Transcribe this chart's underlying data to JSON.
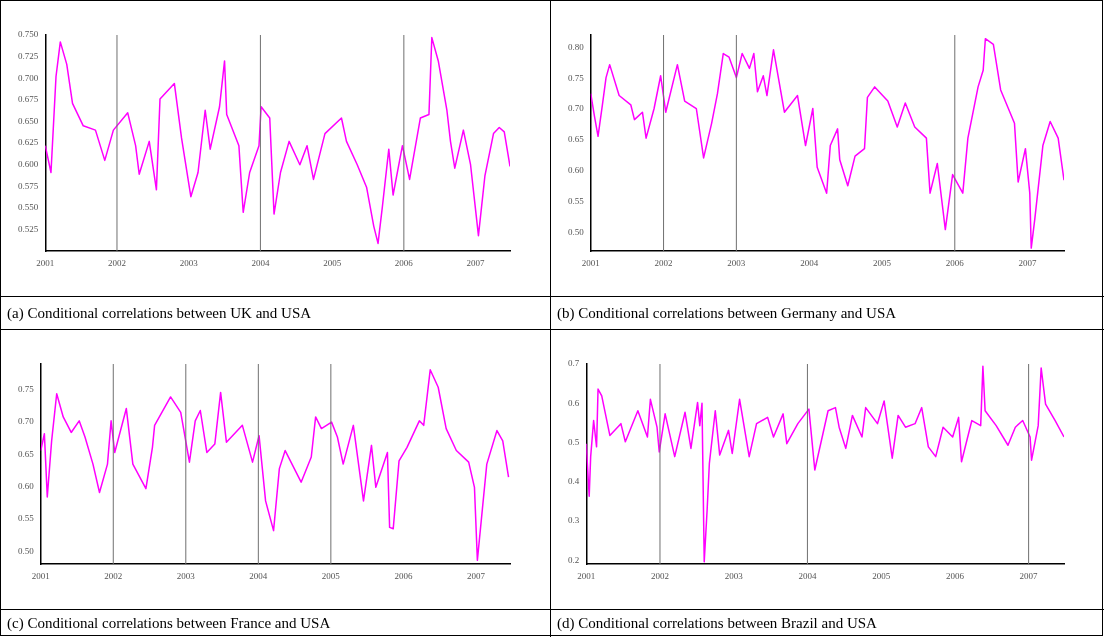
{
  "chart_data": [
    {
      "type": "line",
      "title": "(a) Conditional correlations between UK and USA",
      "marker": "none",
      "line_style": "solid",
      "xlim": [
        2001,
        2007.48
      ],
      "xticks": [
        2001,
        2002,
        2003,
        2004,
        2005,
        2006,
        2007
      ],
      "ylim": [
        0.5,
        0.75
      ],
      "yticks": [
        {
          "value": 0.525,
          "label": "0.525"
        },
        {
          "value": 0.55,
          "label": "0.550"
        },
        {
          "value": 0.575,
          "label": "0.575"
        },
        {
          "value": 0.6,
          "label": "0.600"
        },
        {
          "value": 0.625,
          "label": "0.625"
        },
        {
          "value": 0.65,
          "label": "0.650"
        },
        {
          "value": 0.675,
          "label": "0.675"
        },
        {
          "value": 0.7,
          "label": "0.700"
        },
        {
          "value": 0.725,
          "label": "0.725"
        },
        {
          "value": 0.75,
          "label": "0.750"
        }
      ],
      "ref_lines": [
        {
          "axis": "x",
          "value": 2002,
          "color": "#707070"
        },
        {
          "axis": "x",
          "value": 2004,
          "color": "#707070"
        },
        {
          "axis": "x",
          "value": 2006,
          "color": "#707070"
        }
      ],
      "x": [
        2001.0,
        2001.08,
        2001.15,
        2001.21,
        2001.3,
        2001.38,
        2001.53,
        2001.7,
        2001.83,
        2001.95,
        2002.15,
        2002.26,
        2002.31,
        2002.45,
        2002.55,
        2002.6,
        2002.8,
        2002.9,
        2003.03,
        2003.13,
        2003.23,
        2003.3,
        2003.43,
        2003.5,
        2003.53,
        2003.7,
        2003.76,
        2003.85,
        2003.98,
        2004.01,
        2004.13,
        2004.19,
        2004.28,
        2004.4,
        2004.55,
        2004.65,
        2004.74,
        2004.9,
        2005.13,
        2005.2,
        2005.35,
        2005.48,
        2005.58,
        2005.64,
        2005.7,
        2005.79,
        2005.85,
        2005.98,
        2006.08,
        2006.23,
        2006.35,
        2006.39,
        2006.48,
        2006.6,
        2006.65,
        2006.71,
        2006.83,
        2006.93,
        2007.04,
        2007.13,
        2007.25,
        2007.33,
        2007.4,
        2007.48
      ],
      "series": [
        {
          "color": "#ff00ff",
          "values": [
            0.622,
            0.591,
            0.702,
            0.742,
            0.716,
            0.671,
            0.645,
            0.64,
            0.605,
            0.64,
            0.66,
            0.622,
            0.589,
            0.627,
            0.571,
            0.676,
            0.694,
            0.631,
            0.563,
            0.591,
            0.663,
            0.618,
            0.667,
            0.72,
            0.658,
            0.622,
            0.545,
            0.591,
            0.622,
            0.667,
            0.654,
            0.543,
            0.591,
            0.627,
            0.6,
            0.622,
            0.583,
            0.636,
            0.654,
            0.627,
            0.6,
            0.574,
            0.529,
            0.509,
            0.551,
            0.618,
            0.565,
            0.622,
            0.583,
            0.654,
            0.658,
            0.747,
            0.72,
            0.663,
            0.627,
            0.596,
            0.64,
            0.6,
            0.518,
            0.587,
            0.636,
            0.643,
            0.638,
            0.598
          ]
        }
      ]
    },
    {
      "type": "line",
      "title": "(b)  Conditional correlations between Germany and USA",
      "marker": "none",
      "line_style": "solid",
      "xlim": [
        2001,
        2007.5
      ],
      "xticks": [
        2001,
        2002,
        2003,
        2004,
        2005,
        2006,
        2007
      ],
      "ylim": [
        0.47,
        0.82
      ],
      "yticks": [
        {
          "value": 0.5,
          "label": "0.50"
        },
        {
          "value": 0.55,
          "label": "0.55"
        },
        {
          "value": 0.6,
          "label": "0.60"
        },
        {
          "value": 0.65,
          "label": "0.65"
        },
        {
          "value": 0.7,
          "label": "0.70"
        },
        {
          "value": 0.75,
          "label": "0.75"
        },
        {
          "value": 0.8,
          "label": "0.80"
        }
      ],
      "ref_lines": [
        {
          "axis": "x",
          "value": 2002,
          "color": "#707070"
        },
        {
          "axis": "x",
          "value": 2003,
          "color": "#707070"
        },
        {
          "axis": "x",
          "value": 2006,
          "color": "#707070"
        }
      ],
      "x": [
        2001.0,
        2001.05,
        2001.1,
        2001.16,
        2001.21,
        2001.26,
        2001.39,
        2001.55,
        2001.6,
        2001.71,
        2001.76,
        2001.87,
        2001.96,
        2002.03,
        2002.19,
        2002.29,
        2002.45,
        2002.55,
        2002.66,
        2002.74,
        2002.82,
        2002.9,
        2003.0,
        2003.08,
        2003.18,
        2003.24,
        2003.29,
        2003.37,
        2003.42,
        2003.51,
        2003.66,
        2003.84,
        2003.95,
        2004.05,
        2004.11,
        2004.24,
        2004.29,
        2004.39,
        2004.42,
        2004.53,
        2004.63,
        2004.76,
        2004.8,
        2004.9,
        2005.08,
        2005.21,
        2005.32,
        2005.45,
        2005.61,
        2005.66,
        2005.76,
        2005.87,
        2005.97,
        2006.11,
        2006.18,
        2006.32,
        2006.39,
        2006.42,
        2006.53,
        2006.63,
        2006.82,
        2006.87,
        2006.97,
        2007.03,
        2007.05,
        2007.1,
        2007.21,
        2007.31,
        2007.42,
        2007.5
      ],
      "series": [
        {
          "color": "#ff00ff",
          "values": [
            0.725,
            0.689,
            0.656,
            0.707,
            0.751,
            0.772,
            0.722,
            0.707,
            0.683,
            0.695,
            0.653,
            0.701,
            0.754,
            0.695,
            0.772,
            0.713,
            0.701,
            0.621,
            0.677,
            0.725,
            0.79,
            0.784,
            0.751,
            0.79,
            0.766,
            0.79,
            0.728,
            0.754,
            0.722,
            0.796,
            0.695,
            0.722,
            0.641,
            0.701,
            0.606,
            0.564,
            0.641,
            0.668,
            0.618,
            0.576,
            0.624,
            0.636,
            0.719,
            0.736,
            0.713,
            0.671,
            0.71,
            0.671,
            0.653,
            0.564,
            0.612,
            0.505,
            0.594,
            0.564,
            0.653,
            0.736,
            0.763,
            0.814,
            0.805,
            0.731,
            0.677,
            0.582,
            0.636,
            0.564,
            0.475,
            0.523,
            0.641,
            0.68,
            0.653,
            0.585
          ]
        }
      ]
    },
    {
      "type": "line",
      "title": "(c) Conditional correlations between France and USA",
      "marker": "none",
      "line_style": "solid",
      "xlim": [
        2001,
        2007.47
      ],
      "xticks": [
        2001,
        2002,
        2003,
        2004,
        2005,
        2006,
        2007
      ],
      "ylim": [
        0.48,
        0.79
      ],
      "yticks": [
        {
          "value": 0.5,
          "label": "0.50"
        },
        {
          "value": 0.55,
          "label": "0.55"
        },
        {
          "value": 0.6,
          "label": "0.60"
        },
        {
          "value": 0.65,
          "label": "0.65"
        },
        {
          "value": 0.7,
          "label": "0.70"
        },
        {
          "value": 0.75,
          "label": "0.75"
        }
      ],
      "ref_lines": [
        {
          "axis": "x",
          "value": 2002,
          "color": "#707070"
        },
        {
          "axis": "x",
          "value": 2003,
          "color": "#707070"
        },
        {
          "axis": "x",
          "value": 2004,
          "color": "#707070"
        },
        {
          "axis": "x",
          "value": 2005,
          "color": "#707070"
        }
      ],
      "x": [
        2001.0,
        2001.05,
        2001.09,
        2001.15,
        2001.22,
        2001.31,
        2001.42,
        2001.53,
        2001.61,
        2001.72,
        2001.81,
        2001.92,
        2001.97,
        2002.02,
        2002.18,
        2002.27,
        2002.45,
        2002.54,
        2002.57,
        2002.79,
        2002.93,
        2003.05,
        2003.13,
        2003.2,
        2003.29,
        2003.4,
        2003.48,
        2003.56,
        2003.78,
        2003.92,
        2004.01,
        2004.1,
        2004.21,
        2004.29,
        2004.37,
        2004.59,
        2004.73,
        2004.79,
        2004.87,
        2005.01,
        2005.09,
        2005.17,
        2005.31,
        2005.45,
        2005.56,
        2005.62,
        2005.78,
        2005.81,
        2005.86,
        2005.94,
        2006.05,
        2006.22,
        2006.28,
        2006.37,
        2006.48,
        2006.59,
        2006.73,
        2006.9,
        2006.98,
        2007.02,
        2007.15,
        2007.29,
        2007.37,
        2007.45
      ],
      "series": [
        {
          "color": "#ff00ff",
          "values": [
            0.656,
            0.682,
            0.584,
            0.671,
            0.744,
            0.708,
            0.684,
            0.702,
            0.677,
            0.635,
            0.591,
            0.635,
            0.702,
            0.653,
            0.721,
            0.635,
            0.597,
            0.661,
            0.695,
            0.739,
            0.715,
            0.638,
            0.702,
            0.718,
            0.653,
            0.666,
            0.746,
            0.669,
            0.695,
            0.638,
            0.679,
            0.578,
            0.532,
            0.628,
            0.656,
            0.607,
            0.646,
            0.708,
            0.69,
            0.7,
            0.677,
            0.635,
            0.695,
            0.578,
            0.664,
            0.599,
            0.653,
            0.537,
            0.535,
            0.64,
            0.661,
            0.702,
            0.695,
            0.781,
            0.754,
            0.69,
            0.656,
            0.638,
            0.599,
            0.486,
            0.635,
            0.687,
            0.671,
            0.615
          ]
        }
      ]
    },
    {
      "type": "line",
      "title": "(d) Conditional correlations between Brazil and USA",
      "marker": "none",
      "line_style": "solid",
      "xlim": [
        2001,
        2007.48
      ],
      "xticks": [
        2001,
        2002,
        2003,
        2004,
        2005,
        2006,
        2007
      ],
      "ylim": [
        0.19,
        0.7
      ],
      "yticks": [
        0.2,
        0.3,
        0.4,
        0.5,
        0.6,
        0.7
      ],
      "ref_lines": [
        {
          "axis": "x",
          "value": 2002,
          "color": "#707070"
        },
        {
          "axis": "x",
          "value": 2004,
          "color": "#707070"
        },
        {
          "axis": "x",
          "value": 2007,
          "color": "#707070"
        }
      ],
      "x": [
        2001.0,
        2001.04,
        2001.06,
        2001.1,
        2001.14,
        2001.16,
        2001.21,
        2001.32,
        2001.47,
        2001.53,
        2001.7,
        2001.83,
        2001.87,
        2001.96,
        2001.99,
        2002.07,
        2002.2,
        2002.34,
        2002.42,
        2002.51,
        2002.54,
        2002.57,
        2002.6,
        2002.64,
        2002.67,
        2002.75,
        2002.81,
        2002.93,
        2002.98,
        2003.08,
        2003.21,
        2003.31,
        2003.46,
        2003.54,
        2003.67,
        2003.72,
        2003.87,
        2004.02,
        2004.1,
        2004.28,
        2004.38,
        2004.43,
        2004.52,
        2004.61,
        2004.74,
        2004.79,
        2004.95,
        2005.04,
        2005.15,
        2005.23,
        2005.33,
        2005.46,
        2005.55,
        2005.64,
        2005.74,
        2005.84,
        2005.97,
        2006.05,
        2006.09,
        2006.23,
        2006.35,
        2006.38,
        2006.41,
        2006.56,
        2006.72,
        2006.82,
        2006.92,
        2007.02,
        2007.04,
        2007.13,
        2007.17,
        2007.23,
        2007.36,
        2007.48
      ],
      "series": [
        {
          "color": "#ff00ff",
          "values": [
            0.497,
            0.363,
            0.464,
            0.556,
            0.489,
            0.636,
            0.619,
            0.518,
            0.548,
            0.502,
            0.581,
            0.514,
            0.61,
            0.539,
            0.476,
            0.573,
            0.464,
            0.577,
            0.485,
            0.602,
            0.543,
            0.6,
            0.196,
            0.33,
            0.447,
            0.581,
            0.468,
            0.531,
            0.472,
            0.61,
            0.464,
            0.548,
            0.564,
            0.514,
            0.573,
            0.497,
            0.548,
            0.585,
            0.43,
            0.581,
            0.589,
            0.539,
            0.485,
            0.569,
            0.514,
            0.589,
            0.548,
            0.606,
            0.46,
            0.569,
            0.539,
            0.548,
            0.589,
            0.489,
            0.464,
            0.539,
            0.514,
            0.564,
            0.451,
            0.556,
            0.543,
            0.694,
            0.581,
            0.543,
            0.493,
            0.539,
            0.556,
            0.514,
            0.455,
            0.543,
            0.69,
            0.598,
            0.556,
            0.514
          ]
        }
      ]
    }
  ]
}
